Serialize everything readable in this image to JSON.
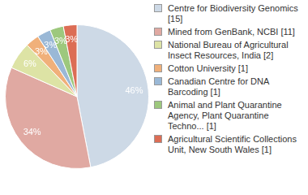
{
  "chart_data": {
    "type": "pie",
    "categories": [
      "Centre for Biodiversity Genomics [15]",
      "Mined from GenBank, NCBI [11]",
      "National Bureau of Agricultural Insect Resources, India [2]",
      "Cotton University [1]",
      "Canadian Centre for DNA Barcoding [1]",
      "Animal and Plant Quarantine Agency, Plant Quarantine Techno... [1]",
      "Agricultural Scientific Collections Unit, New South Wales [1]"
    ],
    "values": [
      46,
      34,
      6,
      3,
      3,
      3,
      3
    ],
    "value_labels": [
      "46%",
      "34%",
      "6%",
      "3%",
      "3%",
      "3%",
      "3%"
    ],
    "colors": [
      "#cdd9e6",
      "#e0a9a2",
      "#dde3a5",
      "#f0b07a",
      "#9ab8d6",
      "#9dc87d",
      "#dc6d55"
    ],
    "data_labels": true,
    "legend": "right"
  }
}
